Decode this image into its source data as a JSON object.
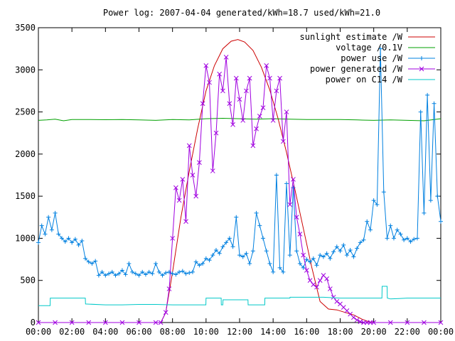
{
  "chart_data": {
    "type": "line",
    "title": "Power log: 2007-04-04 generated/kWh=18.7 used/kWh=21.0",
    "xlabel": "",
    "ylabel": "",
    "x_ticks": [
      "00:00",
      "02:00",
      "04:00",
      "06:00",
      "08:00",
      "10:00",
      "12:00",
      "14:00",
      "16:00",
      "18:00",
      "20:00",
      "22:00",
      "00:00"
    ],
    "xlim_hours": [
      0,
      24
    ],
    "ylim": [
      0,
      3500
    ],
    "y_ticks": [
      0,
      500,
      1000,
      1500,
      2000,
      2500,
      3000,
      3500
    ],
    "grid": false,
    "legend_position": "top-right",
    "series": [
      {
        "name": "sunlight estimate /W",
        "color": "#cc0000",
        "style": "line",
        "x": [
          0,
          7.3,
          7.6,
          8.0,
          8.5,
          9.0,
          9.5,
          10.0,
          10.5,
          11.0,
          11.5,
          11.9,
          12.3,
          12.8,
          13.3,
          13.8,
          14.3,
          14.8,
          15.3,
          15.8,
          16.3,
          16.8,
          17.3,
          17.8,
          18.3,
          18.8,
          19.3,
          19.7,
          20.0,
          24
        ],
        "y": [
          0,
          0,
          120,
          600,
          1250,
          1800,
          2300,
          2750,
          3050,
          3250,
          3340,
          3360,
          3330,
          3230,
          3030,
          2760,
          2420,
          2020,
          1580,
          1120,
          660,
          250,
          160,
          150,
          120,
          90,
          40,
          10,
          0,
          0
        ]
      },
      {
        "name": "voltage /0.1V",
        "color": "#00a000",
        "style": "line",
        "x": [
          0,
          0.5,
          1.0,
          1.5,
          2.0,
          3.0,
          4.0,
          5.0,
          6.0,
          7.0,
          8.0,
          9.0,
          10.0,
          11.0,
          12.0,
          13.0,
          14.0,
          15.0,
          16.0,
          17.0,
          18.0,
          19.0,
          20.0,
          21.0,
          22.0,
          23.0,
          24
        ],
        "y": [
          2400,
          2405,
          2415,
          2395,
          2410,
          2410,
          2408,
          2410,
          2405,
          2400,
          2410,
          2405,
          2420,
          2425,
          2420,
          2415,
          2420,
          2415,
          2410,
          2410,
          2410,
          2405,
          2400,
          2405,
          2400,
          2395,
          2420
        ]
      },
      {
        "name": "power use /W",
        "color": "#0080e0",
        "style": "line+plus",
        "x": [
          0,
          0.2,
          0.4,
          0.6,
          0.8,
          1.0,
          1.2,
          1.4,
          1.6,
          1.8,
          2.0,
          2.2,
          2.4,
          2.6,
          2.8,
          3.0,
          3.2,
          3.4,
          3.6,
          3.8,
          4.0,
          4.2,
          4.4,
          4.6,
          4.8,
          5.0,
          5.2,
          5.4,
          5.6,
          5.8,
          6.0,
          6.2,
          6.4,
          6.6,
          6.8,
          7.0,
          7.2,
          7.4,
          7.6,
          7.8,
          8.0,
          8.2,
          8.4,
          8.6,
          8.8,
          9.0,
          9.2,
          9.4,
          9.6,
          9.8,
          10.0,
          10.2,
          10.4,
          10.6,
          10.8,
          11.0,
          11.2,
          11.4,
          11.6,
          11.8,
          12.0,
          12.2,
          12.4,
          12.6,
          12.8,
          13.0,
          13.2,
          13.4,
          13.6,
          13.8,
          14.0,
          14.2,
          14.4,
          14.6,
          14.8,
          15.0,
          15.2,
          15.4,
          15.6,
          15.8,
          16.0,
          16.2,
          16.4,
          16.6,
          16.8,
          17.0,
          17.2,
          17.4,
          17.6,
          17.8,
          18.0,
          18.2,
          18.4,
          18.6,
          18.8,
          19.0,
          19.2,
          19.4,
          19.6,
          19.8,
          20.0,
          20.2,
          20.4,
          20.6,
          20.8,
          21.0,
          21.2,
          21.4,
          21.6,
          21.8,
          22.0,
          22.2,
          22.4,
          22.6,
          22.8,
          23.0,
          23.2,
          23.4,
          23.6,
          23.8,
          24.0
        ],
        "y": [
          950,
          1150,
          1050,
          1250,
          1100,
          1300,
          1050,
          1000,
          960,
          1000,
          950,
          990,
          920,
          970,
          760,
          720,
          700,
          730,
          560,
          600,
          560,
          580,
          600,
          560,
          580,
          620,
          570,
          700,
          600,
          580,
          560,
          600,
          570,
          600,
          580,
          700,
          600,
          560,
          590,
          600,
          580,
          570,
          600,
          610,
          580,
          590,
          600,
          720,
          680,
          700,
          760,
          740,
          800,
          860,
          820,
          900,
          950,
          1000,
          900,
          1250,
          800,
          780,
          820,
          700,
          850,
          1300,
          1150,
          1000,
          850,
          700,
          600,
          1750,
          650,
          600,
          1650,
          800,
          1600,
          850,
          700,
          650,
          750,
          720,
          760,
          680,
          800,
          780,
          820,
          760,
          840,
          900,
          850,
          920,
          800,
          860,
          780,
          880,
          950,
          980,
          1200,
          1100,
          1450,
          1400,
          3250,
          1550,
          1000,
          1150,
          1000,
          1100,
          1050,
          980,
          1000,
          960,
          990,
          1000,
          2500,
          1300,
          2700,
          1450,
          2600,
          1500,
          1200
        ]
      },
      {
        "name": "power generated /W",
        "color": "#a000e0",
        "style": "line+cross",
        "x": [
          0,
          1.0,
          2.0,
          3.0,
          4.0,
          5.0,
          6.0,
          7.0,
          7.3,
          7.6,
          7.8,
          8.0,
          8.2,
          8.4,
          8.6,
          8.8,
          9.0,
          9.2,
          9.4,
          9.6,
          9.8,
          10.0,
          10.2,
          10.4,
          10.6,
          10.8,
          11.0,
          11.2,
          11.4,
          11.6,
          11.8,
          12.0,
          12.2,
          12.4,
          12.6,
          12.8,
          13.0,
          13.2,
          13.4,
          13.6,
          13.8,
          14.0,
          14.2,
          14.4,
          14.6,
          14.8,
          15.0,
          15.2,
          15.4,
          15.6,
          15.8,
          16.0,
          16.2,
          16.4,
          16.6,
          16.8,
          17.0,
          17.2,
          17.4,
          17.6,
          17.8,
          18.0,
          18.2,
          18.4,
          18.6,
          18.8,
          19.0,
          19.2,
          19.4,
          19.6,
          19.8,
          20.0,
          21.0,
          22.0,
          23.0,
          24
        ],
        "y": [
          0,
          0,
          0,
          0,
          0,
          0,
          0,
          0,
          0,
          120,
          400,
          1000,
          1600,
          1450,
          1700,
          1200,
          2100,
          1750,
          1500,
          1900,
          2600,
          3050,
          2850,
          1800,
          2250,
          2950,
          2750,
          3150,
          2600,
          2350,
          2900,
          2650,
          2400,
          2750,
          2900,
          2100,
          2300,
          2450,
          2550,
          3050,
          2900,
          2400,
          2750,
          2900,
          2150,
          2500,
          1400,
          1700,
          1250,
          1050,
          800,
          620,
          500,
          450,
          420,
          500,
          560,
          520,
          400,
          300,
          250,
          220,
          180,
          140,
          100,
          60,
          30,
          10,
          0,
          0,
          0,
          0,
          0,
          0,
          0,
          0
        ]
      },
      {
        "name": "power on C14 /W",
        "color": "#00c8c8",
        "style": "line",
        "x": [
          0,
          0.01,
          0.7,
          0.71,
          2.8,
          2.81,
          4.0,
          5.0,
          6.0,
          7.0,
          8.0,
          9.0,
          9.99,
          10.0,
          10.9,
          10.91,
          11.0,
          11.01,
          12.5,
          12.51,
          13.5,
          13.51,
          15.0,
          15.01,
          17.0,
          18.0,
          19.0,
          20.0,
          20.49,
          20.5,
          20.8,
          20.81,
          21.0,
          21.5,
          22.0,
          23.0,
          24
        ],
        "y": [
          200,
          200,
          200,
          290,
          290,
          220,
          210,
          210,
          215,
          215,
          210,
          210,
          210,
          290,
          290,
          210,
          210,
          270,
          270,
          210,
          210,
          290,
          290,
          300,
          300,
          290,
          290,
          290,
          290,
          430,
          430,
          290,
          280,
          285,
          290,
          290,
          290
        ]
      }
    ]
  }
}
